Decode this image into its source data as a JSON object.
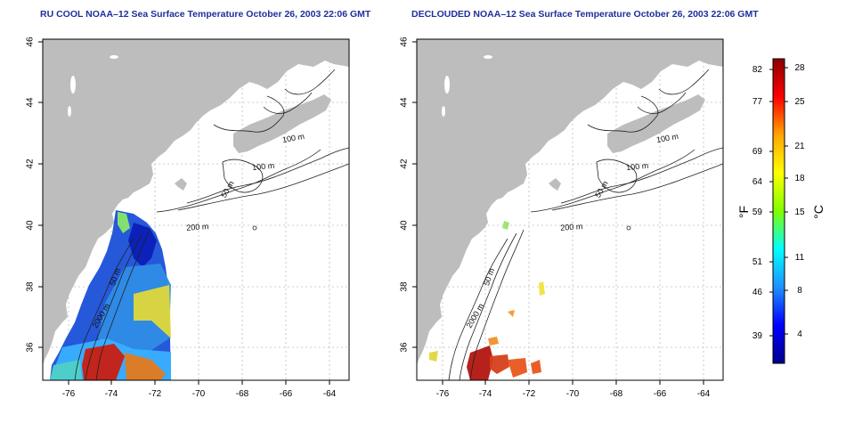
{
  "maps": [
    {
      "title": "RU COOL NOAA–12 Sea Surface Temperature October 26, 2003 22:06 GMT",
      "y_ticks": [
        "46",
        "44",
        "42",
        "40",
        "38",
        "36"
      ],
      "x_ticks": [
        "-76",
        "-74",
        "-72",
        "-70",
        "-68",
        "-66",
        "-64"
      ],
      "contour_labels": [
        "100 m",
        "100 m",
        "50 m",
        "200 m",
        "50 m",
        "2000 m"
      ],
      "variant": "raw"
    },
    {
      "title": "DECLOUDED NOAA–12 Sea Surface Temperature October 26, 2003 22:06 GMT",
      "y_ticks": [
        "46",
        "44",
        "42",
        "40",
        "38",
        "36"
      ],
      "x_ticks": [
        "-76",
        "-74",
        "-72",
        "-70",
        "-68",
        "-66",
        "-64"
      ],
      "contour_labels": [
        "100 m",
        "100 m",
        "50 m",
        "200 m",
        "50 m",
        "2000 m"
      ],
      "variant": "declouded"
    }
  ],
  "colorbar": {
    "left_unit": "°F",
    "right_unit": "°C",
    "fahrenheit_ticks": [
      "82",
      "77",
      "69",
      "64",
      "59",
      "51",
      "46",
      "39"
    ],
    "celsius_ticks": [
      "28",
      "25",
      "21",
      "18",
      "15",
      "11",
      "8",
      "4"
    ],
    "colors": [
      "#00008b",
      "#0000ff",
      "#1e90ff",
      "#00ffff",
      "#7fff00",
      "#ffff00",
      "#ffa500",
      "#ff0000",
      "#8b0000"
    ]
  }
}
